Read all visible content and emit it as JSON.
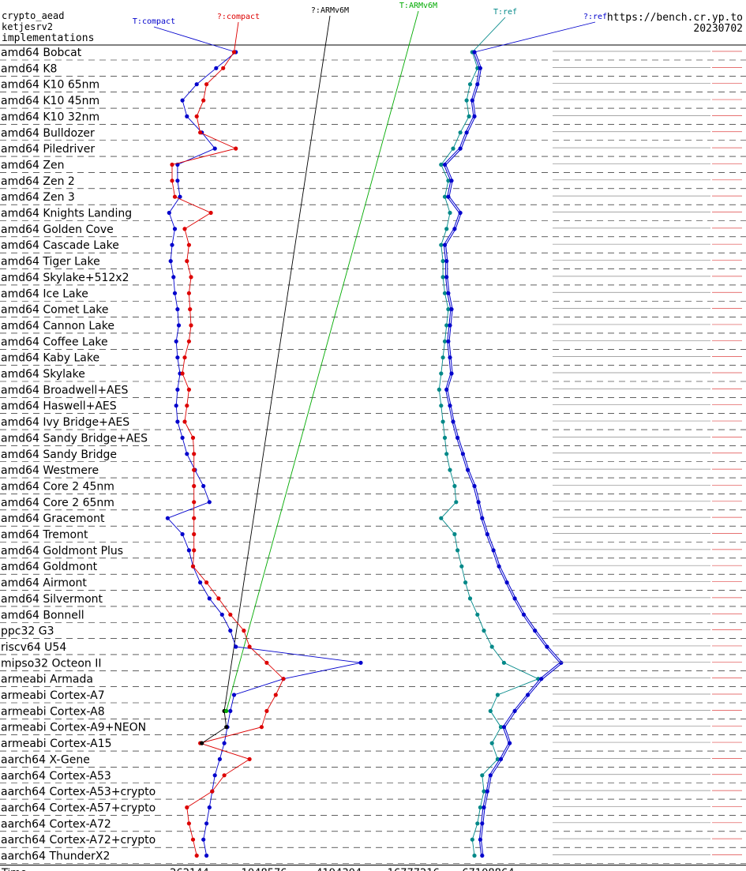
{
  "header": {
    "line1": "crypto_aead",
    "line2": "ketjesrv2",
    "line3": "implementations",
    "site": "https://bench.cr.yp.to",
    "date": "20230702"
  },
  "chart_data": {
    "type": "scatter",
    "title": "",
    "xlabel": "Time",
    "x_scale": "log",
    "x_ticks": [
      262144,
      1048576,
      4194304,
      16777216,
      67108864
    ],
    "legend": [
      {
        "label": "T:compact",
        "color": "#0000cc"
      },
      {
        "label": "?:compact",
        "color": "#dd0000"
      },
      {
        "label": "?:ARMv6M",
        "color": "#000000"
      },
      {
        "label": "T:ARMv6M",
        "color": "#00aa00"
      },
      {
        "label": "T:ref",
        "color": "#008888"
      },
      {
        "label": "?:ref",
        "color": "#0000cc"
      }
    ],
    "machines": [
      "amd64 Bobcat",
      "amd64 K8",
      "amd64 K10 65nm",
      "amd64 K10 45nm",
      "amd64 K10 32nm",
      "amd64 Bulldozer",
      "amd64 Piledriver",
      "amd64 Zen",
      "amd64 Zen 2",
      "amd64 Zen 3",
      "amd64 Knights Landing",
      "amd64 Golden Cove",
      "amd64 Cascade Lake",
      "amd64 Tiger Lake",
      "amd64 Skylake+512x2",
      "amd64 Ice Lake",
      "amd64 Comet Lake",
      "amd64 Cannon Lake",
      "amd64 Coffee Lake",
      "amd64 Kaby Lake",
      "amd64 Skylake",
      "amd64 Broadwell+AES",
      "amd64 Haswell+AES",
      "amd64 Ivy Bridge+AES",
      "amd64 Sandy Bridge+AES",
      "amd64 Sandy Bridge",
      "amd64 Westmere",
      "amd64 Core 2 45nm",
      "amd64 Core 2 65nm",
      "amd64 Gracemont",
      "amd64 Tremont",
      "amd64 Goldmont Plus",
      "amd64 Goldmont",
      "amd64 Airmont",
      "amd64 Silvermont",
      "amd64 Bonnell",
      "ppc32 G3",
      "riscv64 U54",
      "mipso32 Octeon II",
      "armeabi Armada",
      "armeabi Cortex-A7",
      "armeabi Cortex-A8",
      "armeabi Cortex-A9+NEON",
      "armeabi Cortex-A15",
      "aarch64 X-Gene",
      "aarch64 Cortex-A53",
      "aarch64 Cortex-A53+crypto",
      "aarch64 Cortex-A57+crypto",
      "aarch64 Cortex-A72",
      "aarch64 Cortex-A72+crypto",
      "aarch64 ThunderX2"
    ],
    "series": [
      {
        "name": "T:compact",
        "color": "#0000cc",
        "values": [
          {
            "m": 0,
            "x": 620000
          },
          {
            "m": 1,
            "x": 430000
          },
          {
            "m": 2,
            "x": 300000
          },
          {
            "m": 3,
            "x": 230000
          },
          {
            "m": 4,
            "x": 250000
          },
          {
            "m": 5,
            "x": 330000
          },
          {
            "m": 6,
            "x": 420000
          },
          {
            "m": 7,
            "x": 210000
          },
          {
            "m": 8,
            "x": 210000
          },
          {
            "m": 9,
            "x": 220000
          },
          {
            "m": 10,
            "x": 180000
          },
          {
            "m": 11,
            "x": 200000
          },
          {
            "m": 12,
            "x": 190000
          },
          {
            "m": 13,
            "x": 185000
          },
          {
            "m": 14,
            "x": 195000
          },
          {
            "m": 15,
            "x": 200000
          },
          {
            "m": 16,
            "x": 210000
          },
          {
            "m": 17,
            "x": 215000
          },
          {
            "m": 18,
            "x": 205000
          },
          {
            "m": 19,
            "x": 210000
          },
          {
            "m": 20,
            "x": 220000
          },
          {
            "m": 21,
            "x": 210000
          },
          {
            "m": 22,
            "x": 205000
          },
          {
            "m": 23,
            "x": 210000
          },
          {
            "m": 24,
            "x": 230000
          },
          {
            "m": 25,
            "x": 250000
          },
          {
            "m": 26,
            "x": 290000
          },
          {
            "m": 27,
            "x": 340000
          },
          {
            "m": 28,
            "x": 380000
          },
          {
            "m": 29,
            "x": 175000
          },
          {
            "m": 30,
            "x": 230000
          },
          {
            "m": 31,
            "x": 260000
          },
          {
            "m": 32,
            "x": 280000
          },
          {
            "m": 33,
            "x": 320000
          },
          {
            "m": 34,
            "x": 380000
          },
          {
            "m": 35,
            "x": 480000
          },
          {
            "m": 36,
            "x": 560000
          },
          {
            "m": 37,
            "x": 620000
          },
          {
            "m": 38,
            "x": 6300000
          },
          {
            "m": 39,
            "x": 1500000
          },
          {
            "m": 40,
            "x": 600000
          },
          {
            "m": 41,
            "x": 560000
          },
          {
            "m": 42,
            "x": 530000
          },
          {
            "m": 43,
            "x": 500000
          },
          {
            "m": 44,
            "x": 460000
          },
          {
            "m": 45,
            "x": 420000
          },
          {
            "m": 46,
            "x": 400000
          },
          {
            "m": 47,
            "x": 380000
          },
          {
            "m": 48,
            "x": 360000
          },
          {
            "m": 49,
            "x": 340000
          },
          {
            "m": 50,
            "x": 360000
          }
        ]
      },
      {
        "name": "?:compact",
        "color": "#dd0000",
        "values": [
          {
            "m": 0,
            "x": 600000
          },
          {
            "m": 1,
            "x": 490000
          },
          {
            "m": 2,
            "x": 360000
          },
          {
            "m": 3,
            "x": 340000
          },
          {
            "m": 4,
            "x": 300000
          },
          {
            "m": 5,
            "x": 320000
          },
          {
            "m": 6,
            "x": 620000
          },
          {
            "m": 7,
            "x": 190000
          },
          {
            "m": 8,
            "x": 190000
          },
          {
            "m": 9,
            "x": 200000
          },
          {
            "m": 10,
            "x": 390000
          },
          {
            "m": 11,
            "x": 240000
          },
          {
            "m": 12,
            "x": 260000
          },
          {
            "m": 13,
            "x": 250000
          },
          {
            "m": 14,
            "x": 270000
          },
          {
            "m": 15,
            "x": 260000
          },
          {
            "m": 16,
            "x": 265000
          },
          {
            "m": 17,
            "x": 270000
          },
          {
            "m": 18,
            "x": 260000
          },
          {
            "m": 19,
            "x": 240000
          },
          {
            "m": 20,
            "x": 230000
          },
          {
            "m": 21,
            "x": 260000
          },
          {
            "m": 22,
            "x": 250000
          },
          {
            "m": 23,
            "x": 240000
          },
          {
            "m": 24,
            "x": 280000
          },
          {
            "m": 25,
            "x": 285000
          },
          {
            "m": 26,
            "x": 285000
          },
          {
            "m": 27,
            "x": 285000
          },
          {
            "m": 28,
            "x": 285000
          },
          {
            "m": 29,
            "x": 285000
          },
          {
            "m": 30,
            "x": 285000
          },
          {
            "m": 31,
            "x": 285000
          },
          {
            "m": 32,
            "x": 280000
          },
          {
            "m": 33,
            "x": 360000
          },
          {
            "m": 34,
            "x": 450000
          },
          {
            "m": 35,
            "x": 560000
          },
          {
            "m": 36,
            "x": 720000
          },
          {
            "m": 37,
            "x": 800000
          },
          {
            "m": 38,
            "x": 1100000
          },
          {
            "m": 39,
            "x": 1500000
          },
          {
            "m": 40,
            "x": 1300000
          },
          {
            "m": 41,
            "x": 1100000
          },
          {
            "m": 42,
            "x": 1000000
          },
          {
            "m": 43,
            "x": 320000
          },
          {
            "m": 44,
            "x": 800000
          },
          {
            "m": 45,
            "x": 500000
          },
          {
            "m": 46,
            "x": 400000
          },
          {
            "m": 47,
            "x": 250000
          },
          {
            "m": 48,
            "x": 260000
          },
          {
            "m": 49,
            "x": 280000
          },
          {
            "m": 50,
            "x": 300000
          }
        ]
      },
      {
        "name": "?:ARMv6M",
        "color": "#000000",
        "values": [
          {
            "m": 41,
            "x": 500000
          },
          {
            "m": 42,
            "x": 520000
          },
          {
            "m": 43,
            "x": 330000
          }
        ]
      },
      {
        "name": "T:ARMv6M",
        "color": "#00aa00",
        "values": [
          {
            "m": 41,
            "x": 520000
          }
        ]
      },
      {
        "name": "T:ref",
        "color": "#008888",
        "values": [
          {
            "m": 0,
            "x": 50000000
          },
          {
            "m": 1,
            "x": 55000000
          },
          {
            "m": 2,
            "x": 48000000
          },
          {
            "m": 3,
            "x": 45000000
          },
          {
            "m": 4,
            "x": 47000000
          },
          {
            "m": 5,
            "x": 40000000
          },
          {
            "m": 6,
            "x": 35000000
          },
          {
            "m": 7,
            "x": 28000000
          },
          {
            "m": 8,
            "x": 32000000
          },
          {
            "m": 9,
            "x": 30000000
          },
          {
            "m": 10,
            "x": 33000000
          },
          {
            "m": 11,
            "x": 31000000
          },
          {
            "m": 12,
            "x": 28000000
          },
          {
            "m": 13,
            "x": 29000000
          },
          {
            "m": 14,
            "x": 29000000
          },
          {
            "m": 15,
            "x": 30000000
          },
          {
            "m": 16,
            "x": 32000000
          },
          {
            "m": 17,
            "x": 31000000
          },
          {
            "m": 18,
            "x": 30000000
          },
          {
            "m": 19,
            "x": 29000000
          },
          {
            "m": 20,
            "x": 28000000
          },
          {
            "m": 21,
            "x": 27000000
          },
          {
            "m": 22,
            "x": 28000000
          },
          {
            "m": 23,
            "x": 29000000
          },
          {
            "m": 24,
            "x": 30000000
          },
          {
            "m": 25,
            "x": 31000000
          },
          {
            "m": 26,
            "x": 33000000
          },
          {
            "m": 27,
            "x": 36000000
          },
          {
            "m": 28,
            "x": 37000000
          },
          {
            "m": 29,
            "x": 28000000
          },
          {
            "m": 30,
            "x": 36000000
          },
          {
            "m": 31,
            "x": 38000000
          },
          {
            "m": 32,
            "x": 41000000
          },
          {
            "m": 33,
            "x": 44000000
          },
          {
            "m": 34,
            "x": 48000000
          },
          {
            "m": 35,
            "x": 55000000
          },
          {
            "m": 36,
            "x": 62000000
          },
          {
            "m": 37,
            "x": 72000000
          },
          {
            "m": 38,
            "x": 90000000
          },
          {
            "m": 39,
            "x": 170000000
          },
          {
            "m": 40,
            "x": 80000000
          },
          {
            "m": 41,
            "x": 70000000
          },
          {
            "m": 42,
            "x": 85000000
          },
          {
            "m": 43,
            "x": 72000000
          },
          {
            "m": 44,
            "x": 80000000
          },
          {
            "m": 45,
            "x": 60000000
          },
          {
            "m": 46,
            "x": 62000000
          },
          {
            "m": 47,
            "x": 58000000
          },
          {
            "m": 48,
            "x": 55000000
          },
          {
            "m": 49,
            "x": 50000000
          },
          {
            "m": 50,
            "x": 52000000
          }
        ]
      },
      {
        "name": "?:ref",
        "color": "#0000cc",
        "values": [
          {
            "m": 0,
            "x": 52000000
          },
          {
            "m": 1,
            "x": 58000000
          },
          {
            "m": 2,
            "x": 55000000
          },
          {
            "m": 3,
            "x": 50000000
          },
          {
            "m": 4,
            "x": 52000000
          },
          {
            "m": 5,
            "x": 45000000
          },
          {
            "m": 6,
            "x": 40000000
          },
          {
            "m": 7,
            "x": 30000000
          },
          {
            "m": 8,
            "x": 34000000
          },
          {
            "m": 9,
            "x": 32000000
          },
          {
            "m": 10,
            "x": 40000000
          },
          {
            "m": 11,
            "x": 36000000
          },
          {
            "m": 12,
            "x": 30000000
          },
          {
            "m": 13,
            "x": 31000000
          },
          {
            "m": 14,
            "x": 31000000
          },
          {
            "m": 15,
            "x": 32000000
          },
          {
            "m": 16,
            "x": 34000000
          },
          {
            "m": 17,
            "x": 33000000
          },
          {
            "m": 18,
            "x": 32000000
          },
          {
            "m": 19,
            "x": 33000000
          },
          {
            "m": 20,
            "x": 34000000
          },
          {
            "m": 21,
            "x": 31000000
          },
          {
            "m": 22,
            "x": 33000000
          },
          {
            "m": 23,
            "x": 35000000
          },
          {
            "m": 24,
            "x": 38000000
          },
          {
            "m": 25,
            "x": 42000000
          },
          {
            "m": 26,
            "x": 46000000
          },
          {
            "m": 27,
            "x": 52000000
          },
          {
            "m": 28,
            "x": 56000000
          },
          {
            "m": 29,
            "x": 60000000
          },
          {
            "m": 30,
            "x": 66000000
          },
          {
            "m": 31,
            "x": 74000000
          },
          {
            "m": 32,
            "x": 82000000
          },
          {
            "m": 33,
            "x": 95000000
          },
          {
            "m": 34,
            "x": 110000000
          },
          {
            "m": 35,
            "x": 130000000
          },
          {
            "m": 36,
            "x": 160000000
          },
          {
            "m": 37,
            "x": 200000000
          },
          {
            "m": 38,
            "x": 260000000
          },
          {
            "m": 39,
            "x": 180000000
          },
          {
            "m": 40,
            "x": 140000000
          },
          {
            "m": 41,
            "x": 110000000
          },
          {
            "m": 42,
            "x": 90000000
          },
          {
            "m": 43,
            "x": 100000000
          },
          {
            "m": 44,
            "x": 85000000
          },
          {
            "m": 45,
            "x": 70000000
          },
          {
            "m": 46,
            "x": 66000000
          },
          {
            "m": 47,
            "x": 62000000
          },
          {
            "m": 48,
            "x": 60000000
          },
          {
            "m": 49,
            "x": 58000000
          },
          {
            "m": 50,
            "x": 60000000
          }
        ]
      }
    ]
  }
}
